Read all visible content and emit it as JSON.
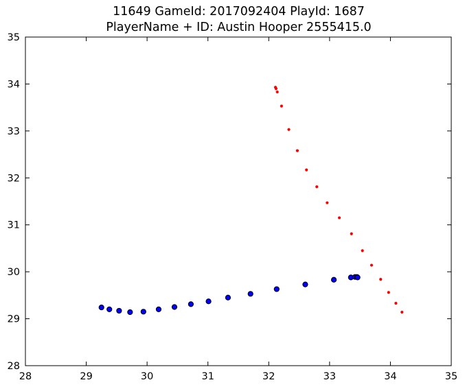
{
  "chart_data": {
    "type": "scatter",
    "title": [
      "11649 GameId: 2017092404 PlayId: 1687",
      "PlayerName + ID: Austin Hooper 2555415.0"
    ],
    "xlabel": "",
    "ylabel": "",
    "xlim": [
      28,
      35
    ],
    "ylim": [
      28,
      35
    ],
    "xticks": [
      28,
      29,
      30,
      31,
      32,
      33,
      34,
      35
    ],
    "yticks": [
      28,
      29,
      30,
      31,
      32,
      33,
      34,
      35
    ],
    "grid": false,
    "series": [
      {
        "color": "#ff0000",
        "marker": "small-dot",
        "points": [
          [
            32.11,
            33.93
          ],
          [
            32.12,
            33.9
          ],
          [
            32.14,
            33.83
          ],
          [
            32.21,
            33.53
          ],
          [
            32.33,
            33.03
          ],
          [
            32.47,
            32.58
          ],
          [
            32.62,
            32.17
          ],
          [
            32.79,
            31.81
          ],
          [
            32.96,
            31.47
          ],
          [
            33.16,
            31.15
          ],
          [
            33.36,
            30.81
          ],
          [
            33.54,
            30.45
          ],
          [
            33.69,
            30.14
          ],
          [
            33.84,
            29.84
          ],
          [
            33.97,
            29.56
          ],
          [
            34.09,
            29.33
          ],
          [
            34.19,
            29.14
          ]
        ]
      },
      {
        "color": "#0000ff",
        "marker": "circle",
        "points": [
          [
            29.25,
            29.24
          ],
          [
            29.38,
            29.2
          ],
          [
            29.54,
            29.17
          ],
          [
            29.72,
            29.14
          ],
          [
            29.94,
            29.15
          ],
          [
            30.19,
            29.2
          ],
          [
            30.45,
            29.25
          ],
          [
            30.72,
            29.31
          ],
          [
            31.01,
            29.37
          ],
          [
            31.33,
            29.45
          ],
          [
            31.7,
            29.53
          ],
          [
            32.13,
            29.63
          ],
          [
            32.6,
            29.73
          ],
          [
            33.07,
            29.83
          ],
          [
            33.35,
            29.88
          ],
          [
            33.42,
            29.89
          ],
          [
            33.45,
            29.89
          ],
          [
            33.46,
            29.88
          ]
        ]
      }
    ]
  }
}
